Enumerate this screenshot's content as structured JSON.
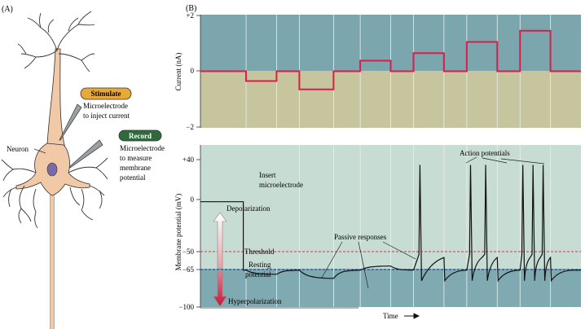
{
  "panelA": {
    "label": "(A)",
    "stimulate_badge": "Stimulate",
    "stimulate_text": [
      "Microelectrode",
      "to inject current"
    ],
    "record_badge": "Record",
    "record_text": [
      "Microelectrode",
      "to measure",
      "membrane",
      "potential"
    ],
    "neuron_label": "Neuron",
    "colors": {
      "stimulate": "#e7a93a",
      "record": "#2f6a3d",
      "neuron": "#f2c9a6",
      "nucleus": "#7a6aa8"
    }
  },
  "panelB": {
    "label": "(B)",
    "current_ylabel": "Current (nA)",
    "current_ticks": [
      "+2",
      "0",
      "−2"
    ],
    "potential_ylabel": "Membrane potential (mV)",
    "potential_ticks": [
      "+40",
      "0",
      "−50",
      "−65",
      "−100"
    ],
    "xlabel": "Time",
    "annotations": {
      "insert": [
        "Insert",
        "microelectrode"
      ],
      "depolarization": "Depolarization",
      "hyperpolarization": "Hyperpolarization",
      "threshold": "Threshold",
      "resting": [
        "Resting",
        "potential"
      ],
      "passive": "Passive responses",
      "action": "Action potentials"
    },
    "colors": {
      "upper_bg": "#7ca6ad",
      "lower_bg": "#c7c59e",
      "potential_upper": "#c7dcd3",
      "potential_lower": "#80aab1",
      "trace_current": "#d81e4a",
      "threshold_line": "#d8334d",
      "resting_line": "#1f3b87"
    }
  },
  "chart_data": [
    {
      "type": "line",
      "ylabel": "Current (nA)",
      "ylim": [
        -2,
        2
      ],
      "xlabel": "Time",
      "series": [
        {
          "steps": [
            {
              "start": 0.0,
              "end": 0.12,
              "value": 0
            },
            {
              "start": 0.12,
              "end": 0.2,
              "value": -0.35
            },
            {
              "start": 0.2,
              "end": 0.26,
              "value": 0
            },
            {
              "start": 0.26,
              "end": 0.35,
              "value": -0.65
            },
            {
              "start": 0.35,
              "end": 0.42,
              "value": 0
            },
            {
              "start": 0.42,
              "end": 0.5,
              "value": 0.38
            },
            {
              "start": 0.5,
              "end": 0.56,
              "value": 0
            },
            {
              "start": 0.56,
              "end": 0.64,
              "value": 0.65
            },
            {
              "start": 0.64,
              "end": 0.7,
              "value": 0
            },
            {
              "start": 0.7,
              "end": 0.78,
              "value": 1.05
            },
            {
              "start": 0.78,
              "end": 0.84,
              "value": 0
            },
            {
              "start": 0.84,
              "end": 0.92,
              "value": 1.45
            },
            {
              "start": 0.92,
              "end": 1.0,
              "value": 0
            }
          ]
        }
      ]
    },
    {
      "type": "line",
      "ylabel": "Membrane potential (mV)",
      "ylim": [
        -100,
        40
      ],
      "xlabel": "Time",
      "reference_lines": {
        "threshold": -50,
        "resting": -65
      },
      "series": [
        {
          "pulses": [
            {
              "start": 0.12,
              "end": 0.2,
              "steady": -69,
              "spikes": 0
            },
            {
              "start": 0.26,
              "end": 0.35,
              "steady": -73,
              "spikes": 0
            },
            {
              "start": 0.42,
              "end": 0.5,
              "steady": -61,
              "spikes": 0
            },
            {
              "start": 0.56,
              "end": 0.64,
              "steady": -53,
              "spikes": 1
            },
            {
              "start": 0.7,
              "end": 0.78,
              "steady": -53,
              "spikes": 2
            },
            {
              "start": 0.84,
              "end": 0.92,
              "steady": -53,
              "spikes": 3
            }
          ],
          "pre_insert_mv": 0,
          "spike_peak_mv": 35
        }
      ]
    }
  ]
}
